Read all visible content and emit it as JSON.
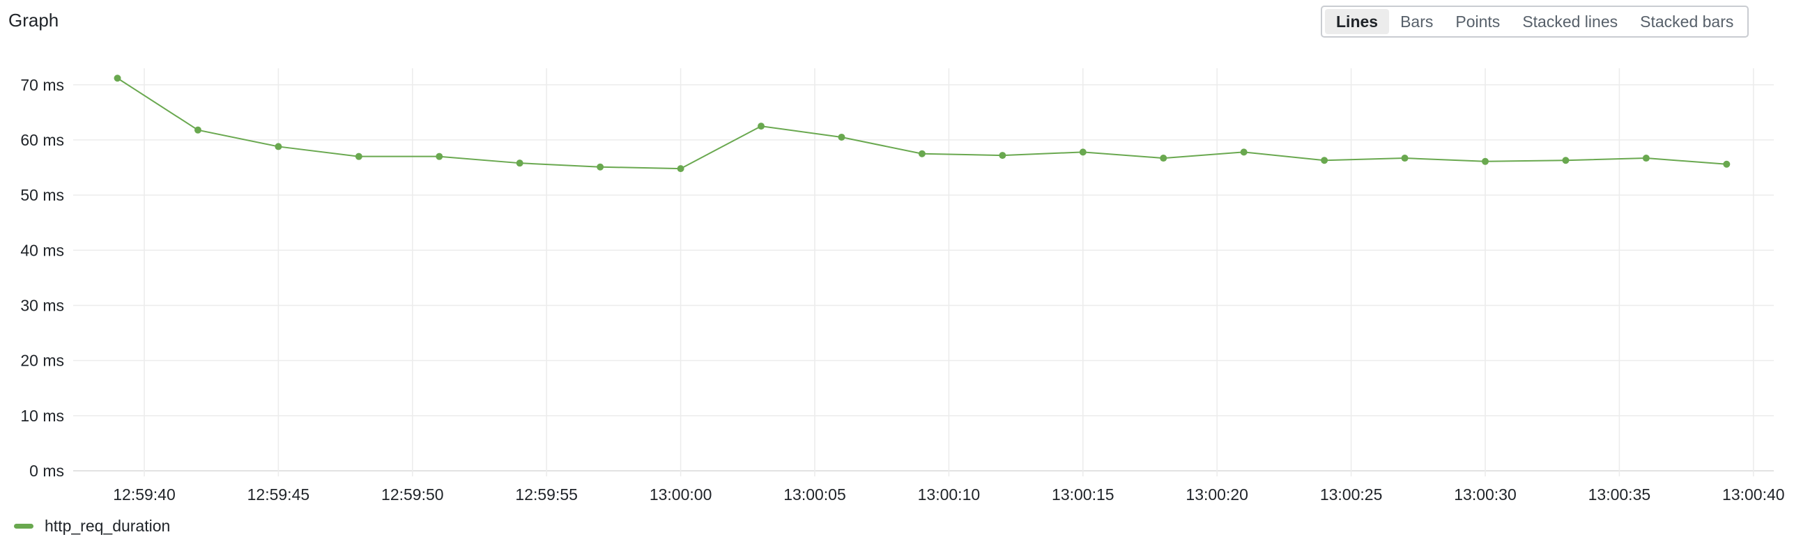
{
  "header": {
    "title": "Graph"
  },
  "toggle": {
    "options": [
      "Lines",
      "Bars",
      "Points",
      "Stacked lines",
      "Stacked bars"
    ],
    "active": "Lines"
  },
  "colors": {
    "series": "#69a84f",
    "grid": "#ececec",
    "axis": "#d9d9d9"
  },
  "chart_data": {
    "type": "line",
    "title": "",
    "xlabel": "",
    "ylabel": "",
    "ylim": [
      0,
      73
    ],
    "y_ticks": [
      0,
      10,
      20,
      30,
      40,
      50,
      60,
      70
    ],
    "y_unit": "ms",
    "x_ticks": [
      "12:59:40",
      "12:59:45",
      "12:59:50",
      "12:59:55",
      "13:00:00",
      "13:00:05",
      "13:00:10",
      "13:00:15",
      "13:00:20",
      "13:00:25",
      "13:00:30",
      "13:00:35",
      "13:00:40"
    ],
    "grid": true,
    "legend_position": "bottom-left",
    "series": [
      {
        "name": "http_req_duration",
        "x": [
          "12:59:39",
          "12:59:42",
          "12:59:45",
          "12:59:48",
          "12:59:51",
          "12:59:54",
          "12:59:57",
          "13:00:00",
          "13:00:03",
          "13:00:06",
          "13:00:09",
          "13:00:12",
          "13:00:15",
          "13:00:18",
          "13:00:21",
          "13:00:24",
          "13:00:27",
          "13:00:30",
          "13:00:33",
          "13:00:36",
          "13:00:39"
        ],
        "values": [
          71.2,
          61.8,
          58.8,
          57.0,
          57.0,
          55.8,
          55.1,
          54.8,
          62.5,
          60.5,
          57.5,
          57.2,
          57.8,
          56.7,
          57.8,
          56.3,
          56.7,
          56.1,
          56.3,
          56.7,
          55.6
        ]
      }
    ]
  }
}
